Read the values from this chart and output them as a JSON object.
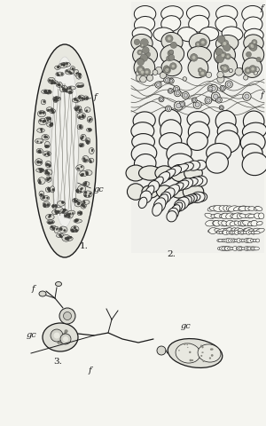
{
  "background_color": "#f5f5f0",
  "line_color": "#1a1a1a",
  "dark_fill": "#555555",
  "med_fill": "#999999",
  "light_fill": "#dddddd",
  "cell_fill": "#e8e8e0",
  "label_f": "f",
  "label_gc": "gc",
  "label_1": "1.",
  "label_2": "2.",
  "label_3": "3."
}
